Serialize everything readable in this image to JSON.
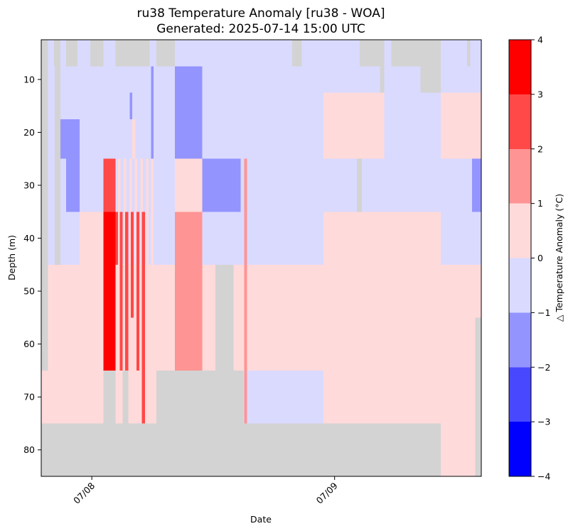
{
  "chart_data": {
    "type": "heatmap",
    "title": "ru38 Temperature Anomaly [ru38 - WOA]",
    "subtitle": "Generated: 2025-07-14 15:00 UTC",
    "xlabel": "Date",
    "ylabel": "Depth (m)",
    "colorbar_label": "△ Temperature Anomaly (°C)",
    "x_ticks": [
      {
        "label": "07/08",
        "hour": 0
      },
      {
        "label": "07/09",
        "hour": 24
      }
    ],
    "xlim_hours": [
      -5.0,
      38.5
    ],
    "y_ticks": [
      10,
      20,
      30,
      40,
      50,
      60,
      70,
      80
    ],
    "ylim": [
      85,
      2.5
    ],
    "y_inverted": true,
    "colorbar_ticks": [
      "4",
      "3",
      "2",
      "1",
      "0",
      "−1",
      "−2",
      "−3",
      "−4"
    ],
    "color_range": [
      -4,
      4
    ],
    "levels": [
      {
        "range": [
          3,
          4
        ],
        "color": "#ff0000"
      },
      {
        "range": [
          2,
          3
        ],
        "color": "#ff4848"
      },
      {
        "range": [
          1,
          2
        ],
        "color": "#ff9494"
      },
      {
        "range": [
          0,
          1
        ],
        "color": "#ffdada"
      },
      {
        "range": [
          -1,
          0
        ],
        "color": "#dadaff"
      },
      {
        "range": [
          -2,
          -1
        ],
        "color": "#9494ff"
      },
      {
        "range": [
          -3,
          -2
        ],
        "color": "#4848ff"
      },
      {
        "range": [
          -4,
          -3
        ],
        "color": "#0000ff"
      }
    ],
    "nodata_color": "#d3d3d3",
    "background_color": "#dadaff",
    "cells": [
      {
        "t": [
          -5.0,
          -4.35
        ],
        "d": [
          2.5,
          65
        ],
        "v": "nan"
      },
      {
        "t": [
          -3.75,
          -3.1
        ],
        "d": [
          2.5,
          7.5
        ],
        "v": "nan"
      },
      {
        "t": [
          -3.65,
          -3.1
        ],
        "d": [
          7.5,
          65
        ],
        "v": "nan"
      },
      {
        "t": [
          -2.55,
          -1.4
        ],
        "d": [
          2.5,
          7.5
        ],
        "v": "nan"
      },
      {
        "t": [
          -0.15,
          1.15
        ],
        "d": [
          2.5,
          7.5
        ],
        "v": "nan"
      },
      {
        "t": [
          2.35,
          5.7
        ],
        "d": [
          2.5,
          7.5
        ],
        "v": "nan"
      },
      {
        "t": [
          6.4,
          8.2
        ],
        "d": [
          2.5,
          7.5
        ],
        "v": "nan"
      },
      {
        "t": [
          19.8,
          20.75
        ],
        "d": [
          2.5,
          7.5
        ],
        "v": "nan"
      },
      {
        "t": [
          26.5,
          28.5
        ],
        "d": [
          2.5,
          7.5
        ],
        "v": "nan"
      },
      {
        "t": [
          28.5,
          28.9
        ],
        "d": [
          2.5,
          25
        ],
        "v": "nan"
      },
      {
        "t": [
          29.6,
          32.5
        ],
        "d": [
          2.5,
          7.5
        ],
        "v": "nan"
      },
      {
        "t": [
          32.5,
          34.5
        ],
        "d": [
          2.5,
          12.5
        ],
        "v": "nan"
      },
      {
        "t": [
          37.1,
          37.4
        ],
        "d": [
          2.5,
          7.5
        ],
        "v": "nan"
      },
      {
        "t": [
          5.85,
          6.1
        ],
        "d": [
          7.5,
          25
        ],
        "v": -1.5
      },
      {
        "t": [
          8.2,
          10.9
        ],
        "d": [
          7.5,
          25
        ],
        "v": -1.5
      },
      {
        "t": [
          3.75,
          4.0
        ],
        "d": [
          12.5,
          17.5
        ],
        "v": -1.5
      },
      {
        "t": [
          37.3,
          37.6
        ],
        "d": [
          12.5,
          17.5
        ],
        "v": -1.5
      },
      {
        "t": [
          -3.1,
          -1.2
        ],
        "d": [
          17.5,
          25
        ],
        "v": -1.5
      },
      {
        "t": [
          -2.55,
          -1.2
        ],
        "d": [
          25,
          35
        ],
        "v": -1.5
      },
      {
        "t": [
          10.9,
          14.7
        ],
        "d": [
          25,
          35
        ],
        "v": -1.5
      },
      {
        "t": [
          37.6,
          38.5
        ],
        "d": [
          25,
          35
        ],
        "v": -1.5
      },
      {
        "t": [
          26.2,
          26.7
        ],
        "d": [
          25,
          75
        ],
        "v": "nan"
      },
      {
        "t": [
          22.9,
          28.9
        ],
        "d": [
          12.5,
          25
        ],
        "v": 0.5
      },
      {
        "t": [
          34.5,
          38.5
        ],
        "d": [
          12.5,
          25
        ],
        "v": 0.5
      },
      {
        "t": [
          4.0,
          4.3
        ],
        "d": [
          17.5,
          25
        ],
        "v": 0.5
      },
      {
        "t": [
          8.2,
          10.9
        ],
        "d": [
          25,
          35
        ],
        "v": 0.5
      },
      {
        "t": [
          1.15,
          2.35
        ],
        "d": [
          25,
          65
        ],
        "v": 2.5
      },
      {
        "t": [
          1.15,
          2.35
        ],
        "d": [
          35,
          65
        ],
        "v": 3.5
      },
      {
        "t": [
          2.6,
          2.85
        ],
        "d": [
          25,
          65
        ],
        "v": 0.5
      },
      {
        "t": [
          3.15,
          3.4
        ],
        "d": [
          25,
          65
        ],
        "v": 0.5
      },
      {
        "t": [
          3.7,
          3.95
        ],
        "d": [
          25,
          65
        ],
        "v": 0.5
      },
      {
        "t": [
          4.25,
          4.5
        ],
        "d": [
          25,
          65
        ],
        "v": 0.5
      },
      {
        "t": [
          4.8,
          5.05
        ],
        "d": [
          25,
          65
        ],
        "v": 0.5
      },
      {
        "t": [
          5.35,
          5.6
        ],
        "d": [
          25,
          65
        ],
        "v": 0.5
      },
      {
        "t": [
          5.85,
          6.1
        ],
        "d": [
          25,
          65
        ],
        "v": 0.5
      },
      {
        "t": [
          -1.2,
          1.15
        ],
        "d": [
          35,
          45
        ],
        "v": 0.5
      },
      {
        "t": [
          -4.35,
          -1.2
        ],
        "d": [
          45,
          65
        ],
        "v": 0.5
      },
      {
        "t": [
          -3.1,
          1.15
        ],
        "d": [
          45,
          65
        ],
        "v": 0.5
      },
      {
        "t": [
          2.35,
          8.2
        ],
        "d": [
          45,
          65
        ],
        "v": 0.5
      },
      {
        "t": [
          10.9,
          22.9
        ],
        "d": [
          45,
          65
        ],
        "v": 0.5
      },
      {
        "t": [
          22.9,
          34.5
        ],
        "d": [
          35,
          75
        ],
        "v": 0.5
      },
      {
        "t": [
          34.5,
          38.5
        ],
        "d": [
          45,
          85
        ],
        "v": 0.5
      },
      {
        "t": [
          -5.0,
          1.15
        ],
        "d": [
          65,
          75
        ],
        "v": 0.5
      },
      {
        "t": [
          13.5,
          15.0
        ],
        "d": [
          65,
          75
        ],
        "v": 0.5
      },
      {
        "t": [
          2.35,
          3.05
        ],
        "d": [
          65,
          75
        ],
        "v": 0.5
      },
      {
        "t": [
          3.6,
          6.4
        ],
        "d": [
          65,
          75
        ],
        "v": 0.5
      },
      {
        "t": [
          2.75,
          3.05
        ],
        "d": [
          35,
          65
        ],
        "v": 2.5
      },
      {
        "t": [
          3.3,
          3.6
        ],
        "d": [
          35,
          65
        ],
        "v": 2.5
      },
      {
        "t": [
          3.85,
          4.15
        ],
        "d": [
          35,
          55
        ],
        "v": 2.5
      },
      {
        "t": [
          4.4,
          4.7
        ],
        "d": [
          35,
          65
        ],
        "v": 2.5
      },
      {
        "t": [
          4.95,
          5.25
        ],
        "d": [
          35,
          75
        ],
        "v": 2.5
      },
      {
        "t": [
          2.35,
          2.6
        ],
        "d": [
          35,
          45
        ],
        "v": 2.5
      },
      {
        "t": [
          8.2,
          10.9
        ],
        "d": [
          35,
          65
        ],
        "v": 1.5
      },
      {
        "t": [
          15.05,
          15.35
        ],
        "d": [
          25,
          75
        ],
        "v": 1.5
      },
      {
        "t": [
          12.2,
          14.0
        ],
        "d": [
          45,
          75
        ],
        "v": "nan"
      },
      {
        "t": [
          14.0,
          15.0
        ],
        "d": [
          65,
          75
        ],
        "v": "nan"
      },
      {
        "t": [
          1.15,
          2.35
        ],
        "d": [
          65,
          75
        ],
        "v": "nan"
      },
      {
        "t": [
          3.05,
          3.6
        ],
        "d": [
          65,
          75
        ],
        "v": "nan"
      },
      {
        "t": [
          6.4,
          13.5
        ],
        "d": [
          65,
          75
        ],
        "v": "nan"
      },
      {
        "t": [
          26.2,
          26.7
        ],
        "d": [
          75,
          85
        ],
        "v": "nan"
      },
      {
        "t": [
          37.9,
          38.5
        ],
        "d": [
          55,
          85
        ],
        "v": "nan"
      },
      {
        "t": [
          -5.0,
          34.5
        ],
        "d": [
          75,
          85
        ],
        "v": "nan"
      }
    ]
  }
}
